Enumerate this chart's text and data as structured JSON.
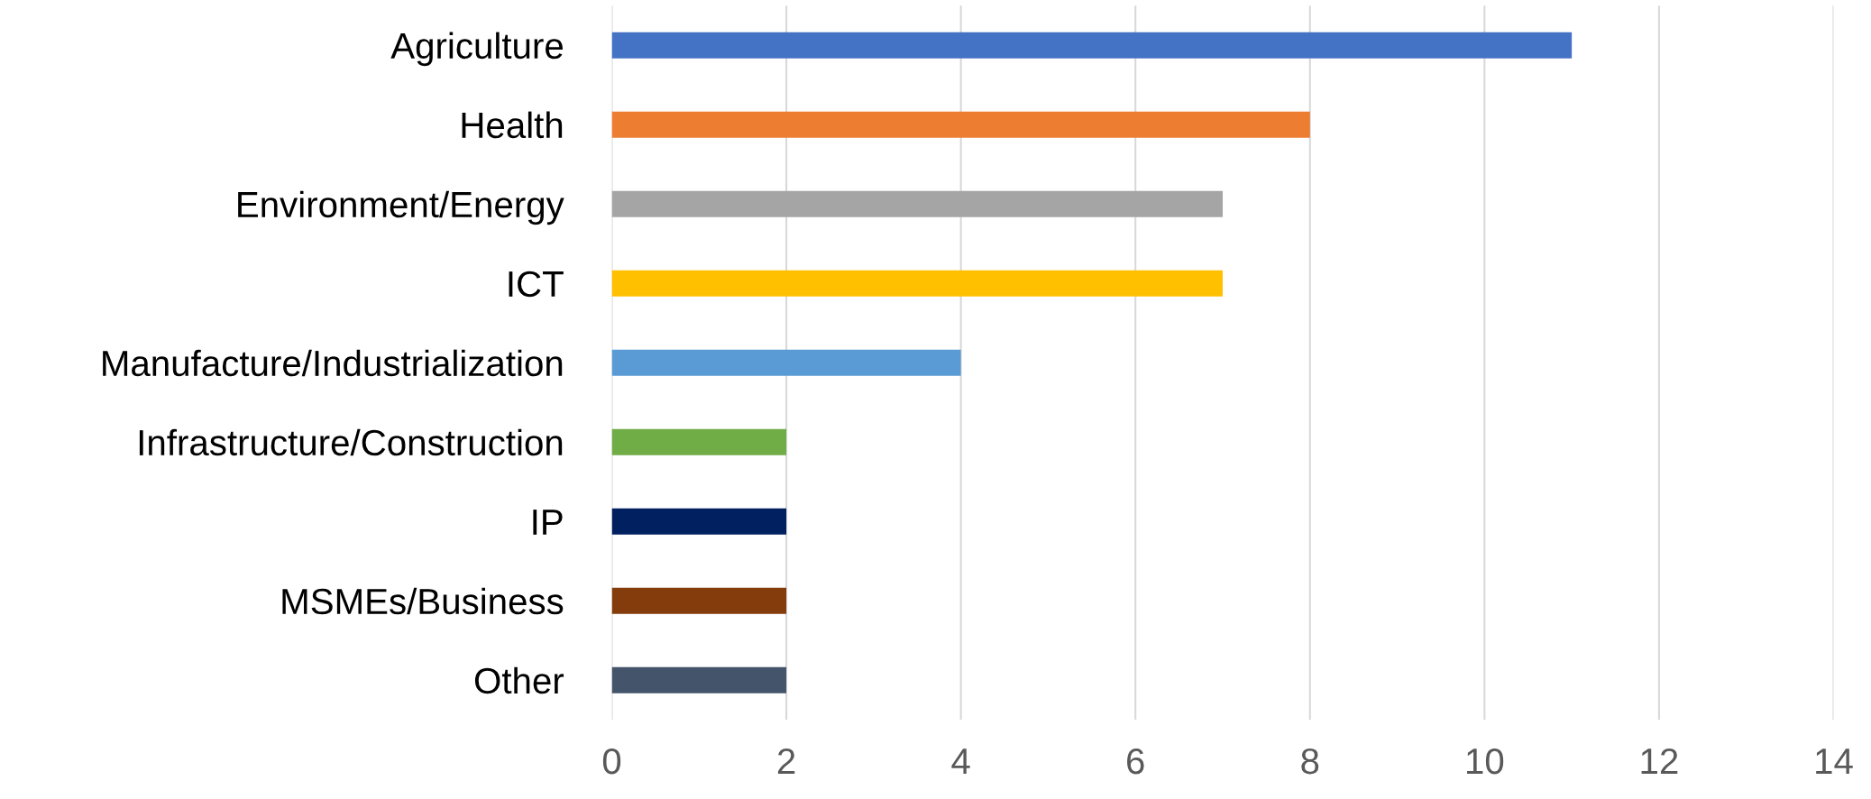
{
  "chart_data": {
    "type": "bar",
    "orientation": "horizontal",
    "categories": [
      "Agriculture",
      "Health",
      "Environment/Energy",
      "ICT",
      "Manufacture/Industrialization",
      "Infrastructure/Construction",
      "IP",
      "MSMEs/Business",
      "Other"
    ],
    "values": [
      11,
      8,
      7,
      7,
      4,
      2,
      2,
      2,
      2
    ],
    "colors": [
      "#4472c4",
      "#ed7d31",
      "#a5a5a5",
      "#ffc000",
      "#5b9bd5",
      "#70ad47",
      "#002060",
      "#843c0c",
      "#44546a"
    ],
    "xlim": [
      0,
      14
    ],
    "xticks": [
      0,
      2,
      4,
      6,
      8,
      10,
      12,
      14
    ],
    "grid": "x",
    "legend": false
  }
}
